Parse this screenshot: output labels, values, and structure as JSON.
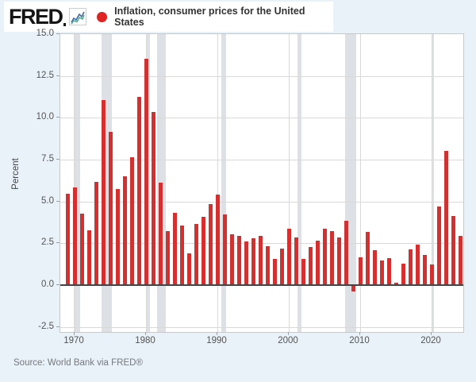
{
  "header": {
    "logo": "FRED",
    "title": "Inflation, consumer prices for the United States",
    "legend_marker_color": "#e02424"
  },
  "y_axis": {
    "label": "Percent",
    "tick_labels": [
      "15.0",
      "12.5",
      "10.0",
      "7.5",
      "5.0",
      "2.5",
      "0.0",
      "-2.5"
    ]
  },
  "x_axis": {
    "tick_labels": [
      "1970",
      "1980",
      "1990",
      "2000",
      "2010",
      "2020"
    ]
  },
  "source": "Source: World Bank via FRED®",
  "chart_data": {
    "type": "bar",
    "title": "Inflation, consumer prices for the United States",
    "ylabel": "Percent",
    "xlabel": "",
    "x": [
      1969,
      1970,
      1971,
      1972,
      1973,
      1974,
      1975,
      1976,
      1977,
      1978,
      1979,
      1980,
      1981,
      1982,
      1983,
      1984,
      1985,
      1986,
      1987,
      1988,
      1989,
      1990,
      1991,
      1992,
      1993,
      1994,
      1995,
      1996,
      1997,
      1998,
      1999,
      2000,
      2001,
      2002,
      2003,
      2004,
      2005,
      2006,
      2007,
      2008,
      2009,
      2010,
      2011,
      2012,
      2013,
      2014,
      2015,
      2016,
      2017,
      2018,
      2019,
      2020,
      2021,
      2022,
      2023,
      2024
    ],
    "values": [
      5.46,
      5.84,
      4.29,
      3.27,
      6.18,
      11.05,
      9.14,
      5.74,
      6.5,
      7.63,
      11.25,
      13.55,
      10.33,
      6.13,
      3.21,
      4.3,
      3.55,
      1.9,
      3.66,
      4.08,
      4.83,
      5.4,
      4.23,
      3.03,
      2.95,
      2.61,
      2.81,
      2.93,
      2.34,
      1.55,
      2.19,
      3.38,
      2.83,
      1.59,
      2.27,
      2.68,
      3.39,
      3.23,
      2.85,
      3.84,
      -0.36,
      1.64,
      3.16,
      2.07,
      1.46,
      1.62,
      0.12,
      1.26,
      2.13,
      2.44,
      1.81,
      1.23,
      4.7,
      8.0,
      4.12,
      2.95
    ],
    "ylim": [
      -2.8,
      15.0
    ],
    "ytick_interval": 2.5,
    "xtick_years": [
      1970,
      1980,
      1990,
      2000,
      2010,
      2020
    ],
    "grid": true,
    "legend_position": "top",
    "bar_color": "#d62f2f",
    "zero_line_color": "#444444",
    "recession_band_color": "#dde1e6",
    "recession_bands": [
      [
        1969.92,
        1970.83
      ],
      [
        1973.83,
        1975.17
      ],
      [
        1980.0,
        1980.5
      ],
      [
        1981.5,
        1982.83
      ],
      [
        1990.5,
        1991.17
      ],
      [
        2001.17,
        2001.83
      ],
      [
        2007.92,
        2009.42
      ],
      [
        2020.08,
        2020.25
      ]
    ]
  }
}
